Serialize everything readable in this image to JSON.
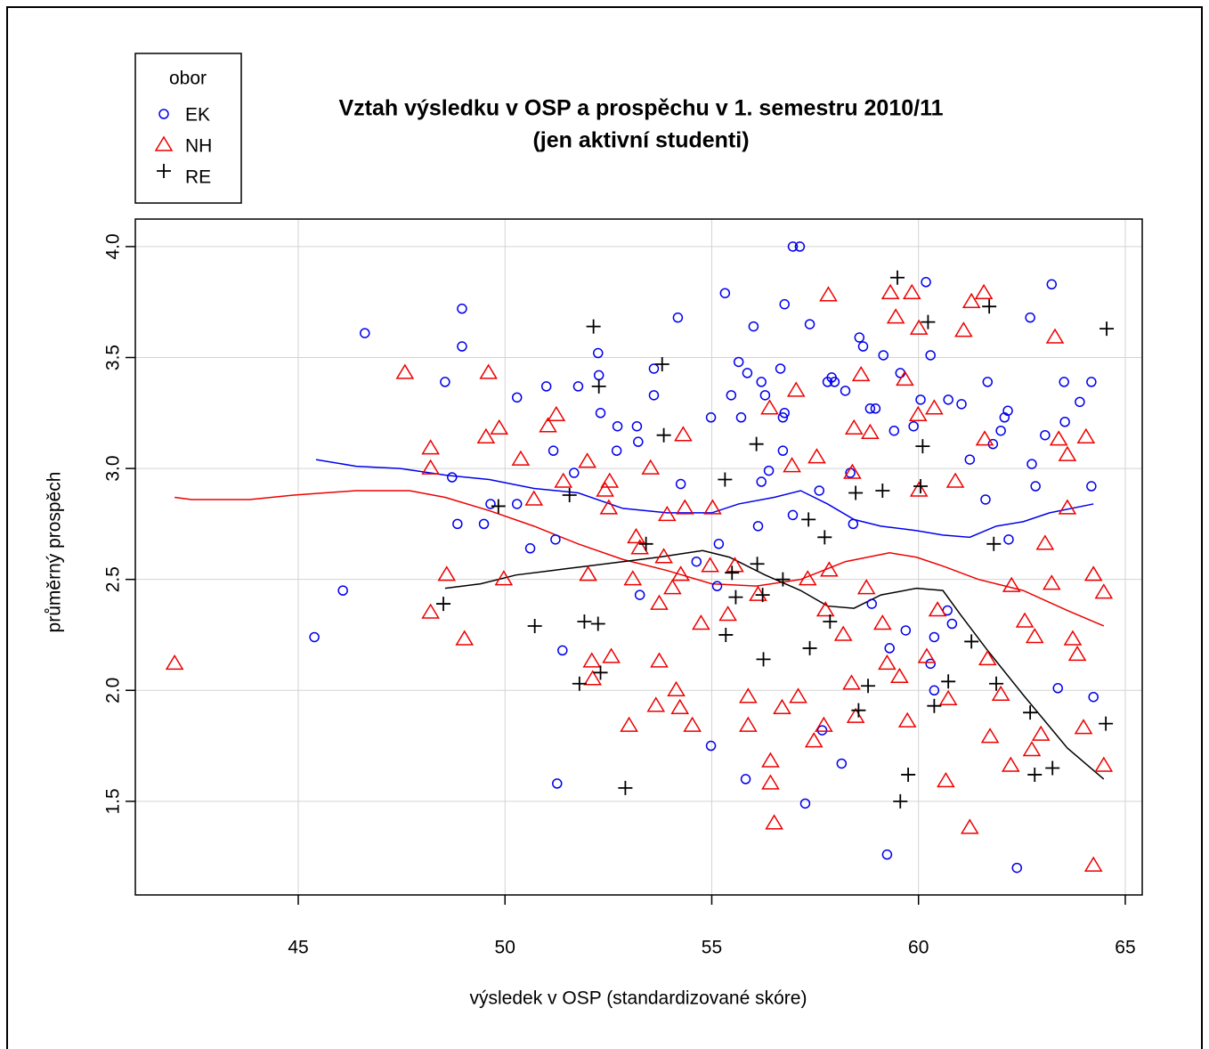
{
  "chart_data": {
    "type": "scatter",
    "title": [
      "Vztah výsledku v OSP a prospěchu v 1. semestru 2010/11",
      "(jen aktivní studenti)"
    ],
    "x_label": "výsledek v OSP (standardizované skóre)",
    "y_label": "průměrný prospěch",
    "legend_title": "obor",
    "legend": "top-left",
    "grid": true,
    "xlim": [
      41.06,
      65.41
    ],
    "ylim": [
      1.078,
      4.124
    ],
    "xticks": [
      45,
      50,
      55,
      60,
      65
    ],
    "yticks": [
      1.5,
      {
        "value": 2,
        "label": "2.0"
      },
      2.5,
      {
        "value": 3,
        "label": "3.0"
      },
      3.5,
      {
        "value": 4,
        "label": "4.0"
      }
    ],
    "series": [
      {
        "name": "EK",
        "color": "#0000ee",
        "marker": "circle",
        "x": [
          45.39,
          46.08,
          46.61,
          48.55,
          48.96,
          48.96,
          48.72,
          48.85,
          49.49,
          49.65,
          50.29,
          50.29,
          50.61,
          51.0,
          51.17,
          51.22,
          51.39,
          51.26,
          51.67,
          51.77,
          52.25,
          52.27,
          52.31,
          52.7,
          52.72,
          53.19,
          53.22,
          53.26,
          53.6,
          53.6,
          54.18,
          54.25,
          54.63,
          54.98,
          54.98,
          55.13,
          55.17,
          55.32,
          55.47,
          55.65,
          55.71,
          55.86,
          55.82,
          56.01,
          56.12,
          56.2,
          56.2,
          56.29,
          56.38,
          56.66,
          56.72,
          56.76,
          56.76,
          56.96,
          57.13,
          56.72,
          56.96,
          57.26,
          57.37,
          57.6,
          57.67,
          57.8,
          57.9,
          57.97,
          58.14,
          58.23,
          58.35,
          58.42,
          58.57,
          58.66,
          58.83,
          58.96,
          59.15,
          59.24,
          59.41,
          59.56,
          59.69,
          59.88,
          60.05,
          60.18,
          60.29,
          60.38,
          60.72,
          60.81,
          61.04,
          61.24,
          61.62,
          61.67,
          61.8,
          61.99,
          62.08,
          62.16,
          62.38,
          62.7,
          62.83,
          63.06,
          63.22,
          63.52,
          63.9,
          64.18,
          64.23,
          63.37,
          62.74,
          62.18,
          63.54,
          64.18,
          60.38,
          60.29,
          60.7,
          59.3,
          58.87
        ],
        "values": [
          2.24,
          2.45,
          3.61,
          3.39,
          3.72,
          3.55,
          2.96,
          2.75,
          2.75,
          2.84,
          3.32,
          2.84,
          2.64,
          3.37,
          3.08,
          2.68,
          2.18,
          1.58,
          2.98,
          3.37,
          3.52,
          3.42,
          3.25,
          3.08,
          3.19,
          3.19,
          3.12,
          2.43,
          3.33,
          3.45,
          3.68,
          2.93,
          2.58,
          3.23,
          1.75,
          2.47,
          2.66,
          3.79,
          3.33,
          3.48,
          3.23,
          3.43,
          1.6,
          3.64,
          2.74,
          2.94,
          3.39,
          3.33,
          2.99,
          3.45,
          3.23,
          3.25,
          3.74,
          4.0,
          4.0,
          3.08,
          2.79,
          1.49,
          3.65,
          2.9,
          1.82,
          3.39,
          3.41,
          3.39,
          1.67,
          3.35,
          2.98,
          2.75,
          3.59,
          3.55,
          3.27,
          3.27,
          3.51,
          1.26,
          3.17,
          3.43,
          2.27,
          3.19,
          3.31,
          3.84,
          3.51,
          2.24,
          3.31,
          2.3,
          3.29,
          3.04,
          2.86,
          3.39,
          3.11,
          3.17,
          3.23,
          3.26,
          1.2,
          3.68,
          2.92,
          3.15,
          3.83,
          3.39,
          3.3,
          2.92,
          1.97,
          2.01,
          3.02,
          2.68,
          3.21,
          3.39,
          2.0,
          2.12,
          2.36,
          2.19,
          2.39
        ],
        "smooth": {
          "x": [
            45.43,
            46.4,
            47.47,
            48.55,
            49.62,
            50.7,
            51.77,
            52.85,
            53.92,
            55.0,
            55.65,
            56.51,
            57.15,
            57.8,
            58.44,
            59.09,
            59.95,
            60.59,
            61.24,
            61.88,
            62.53,
            63.17,
            64.23
          ],
          "values": [
            3.04,
            3.01,
            3.0,
            2.97,
            2.95,
            2.91,
            2.89,
            2.82,
            2.8,
            2.8,
            2.84,
            2.87,
            2.9,
            2.84,
            2.77,
            2.74,
            2.72,
            2.7,
            2.69,
            2.74,
            2.76,
            2.8,
            2.84
          ]
        }
      },
      {
        "name": "NH",
        "color": "#ee0000",
        "marker": "triangle",
        "x": [
          42.01,
          47.58,
          48.2,
          48.2,
          48.2,
          48.59,
          49.02,
          49.54,
          49.6,
          49.86,
          49.97,
          50.38,
          50.7,
          51.04,
          51.24,
          51.41,
          51.99,
          52.01,
          52.1,
          52.12,
          52.42,
          52.51,
          52.53,
          52.57,
          53.0,
          53.09,
          53.17,
          53.26,
          53.52,
          53.65,
          53.73,
          53.73,
          53.84,
          53.92,
          54.05,
          54.14,
          54.23,
          54.25,
          54.31,
          54.35,
          54.53,
          54.74,
          54.96,
          55.02,
          55.39,
          55.56,
          55.88,
          55.88,
          56.12,
          56.4,
          56.42,
          56.42,
          56.51,
          56.7,
          56.94,
          57.04,
          57.09,
          57.32,
          57.47,
          57.54,
          57.71,
          57.75,
          57.82,
          57.84,
          58.18,
          58.38,
          58.4,
          58.44,
          58.48,
          58.61,
          58.74,
          58.83,
          59.13,
          59.24,
          59.32,
          59.45,
          59.54,
          59.67,
          59.73,
          59.84,
          59.99,
          60.01,
          60.01,
          60.2,
          60.38,
          60.46,
          60.66,
          60.72,
          60.89,
          61.09,
          61.28,
          61.24,
          61.58,
          61.6,
          61.67,
          61.73,
          61.99,
          62.25,
          62.23,
          62.57,
          62.74,
          62.81,
          62.96,
          63.06,
          63.22,
          63.3,
          63.39,
          63.6,
          63.73,
          63.84,
          63.99,
          64.05,
          64.23,
          64.23,
          64.48,
          64.48,
          63.6
        ],
        "values": [
          2.12,
          3.43,
          3.09,
          3.0,
          2.35,
          2.52,
          2.23,
          3.14,
          3.43,
          3.18,
          2.5,
          3.04,
          2.86,
          3.19,
          3.24,
          2.94,
          3.03,
          2.52,
          2.13,
          2.05,
          2.9,
          2.82,
          2.94,
          2.15,
          1.84,
          2.5,
          2.69,
          2.64,
          3.0,
          1.93,
          2.39,
          2.13,
          2.6,
          2.79,
          2.46,
          2.0,
          1.92,
          2.52,
          3.15,
          2.82,
          1.84,
          2.3,
          2.56,
          2.82,
          2.34,
          2.56,
          1.97,
          1.84,
          2.43,
          3.27,
          1.68,
          1.58,
          1.4,
          1.92,
          3.01,
          3.35,
          1.97,
          2.5,
          1.77,
          3.05,
          1.84,
          2.36,
          3.78,
          2.54,
          2.25,
          2.03,
          2.98,
          3.18,
          1.88,
          3.42,
          2.46,
          3.16,
          2.3,
          2.12,
          3.79,
          3.68,
          2.06,
          3.4,
          1.86,
          3.79,
          3.24,
          3.63,
          2.9,
          2.15,
          3.27,
          2.36,
          1.59,
          1.96,
          2.94,
          3.62,
          3.75,
          1.38,
          3.79,
          3.13,
          2.14,
          1.79,
          1.98,
          2.47,
          1.66,
          2.31,
          1.73,
          2.24,
          1.8,
          2.66,
          2.48,
          3.59,
          3.13,
          3.06,
          2.23,
          2.16,
          1.83,
          3.14,
          2.52,
          1.21,
          2.44,
          1.66,
          2.82
        ],
        "smooth": {
          "x": [
            42.01,
            42.42,
            43.82,
            44.89,
            46.4,
            47.69,
            48.55,
            49.62,
            50.7,
            51.77,
            52.85,
            53.92,
            55.0,
            56.08,
            57.15,
            58.23,
            59.3,
            59.95,
            60.59,
            61.45,
            62.53,
            63.6,
            64.48
          ],
          "values": [
            2.87,
            2.86,
            2.86,
            2.88,
            2.9,
            2.9,
            2.87,
            2.81,
            2.74,
            2.66,
            2.59,
            2.54,
            2.48,
            2.47,
            2.5,
            2.58,
            2.62,
            2.6,
            2.56,
            2.5,
            2.45,
            2.36,
            2.29
          ]
        }
      },
      {
        "name": "RE",
        "color": "#000000",
        "marker": "plus",
        "x": [
          48.51,
          49.84,
          50.72,
          51.56,
          51.8,
          51.92,
          52.25,
          52.27,
          52.31,
          52.14,
          52.91,
          53.41,
          53.8,
          53.84,
          55.32,
          55.34,
          55.49,
          55.58,
          56.08,
          56.1,
          56.23,
          56.25,
          56.72,
          57.34,
          57.37,
          57.73,
          57.86,
          58.48,
          58.55,
          58.78,
          59.13,
          59.49,
          59.56,
          59.75,
          60.05,
          60.1,
          60.23,
          60.38,
          60.72,
          61.28,
          61.71,
          61.82,
          61.88,
          62.7,
          62.81,
          63.24,
          64.55,
          64.53
        ],
        "values": [
          2.39,
          2.83,
          2.29,
          2.88,
          2.03,
          2.31,
          2.3,
          3.37,
          2.08,
          3.64,
          1.56,
          2.66,
          3.47,
          3.15,
          2.95,
          2.25,
          2.53,
          2.42,
          3.11,
          2.57,
          2.43,
          2.14,
          2.5,
          2.77,
          2.19,
          2.69,
          2.31,
          2.89,
          1.91,
          2.02,
          2.9,
          3.86,
          1.5,
          1.62,
          2.92,
          3.1,
          3.66,
          1.93,
          2.04,
          2.22,
          3.73,
          2.66,
          2.03,
          1.9,
          1.62,
          1.65,
          3.63,
          1.85
        ],
        "smooth": {
          "x": [
            48.55,
            49.41,
            50.27,
            51.13,
            51.99,
            52.85,
            53.71,
            54.78,
            55.43,
            56.29,
            57.15,
            57.8,
            58.44,
            59.09,
            59.95,
            60.59,
            61.02,
            61.67,
            62.53,
            63.6,
            64.48
          ],
          "values": [
            2.46,
            2.48,
            2.52,
            2.54,
            2.56,
            2.58,
            2.6,
            2.63,
            2.6,
            2.52,
            2.45,
            2.38,
            2.37,
            2.43,
            2.46,
            2.45,
            2.34,
            2.18,
            1.98,
            1.74,
            1.6
          ]
        }
      }
    ]
  }
}
